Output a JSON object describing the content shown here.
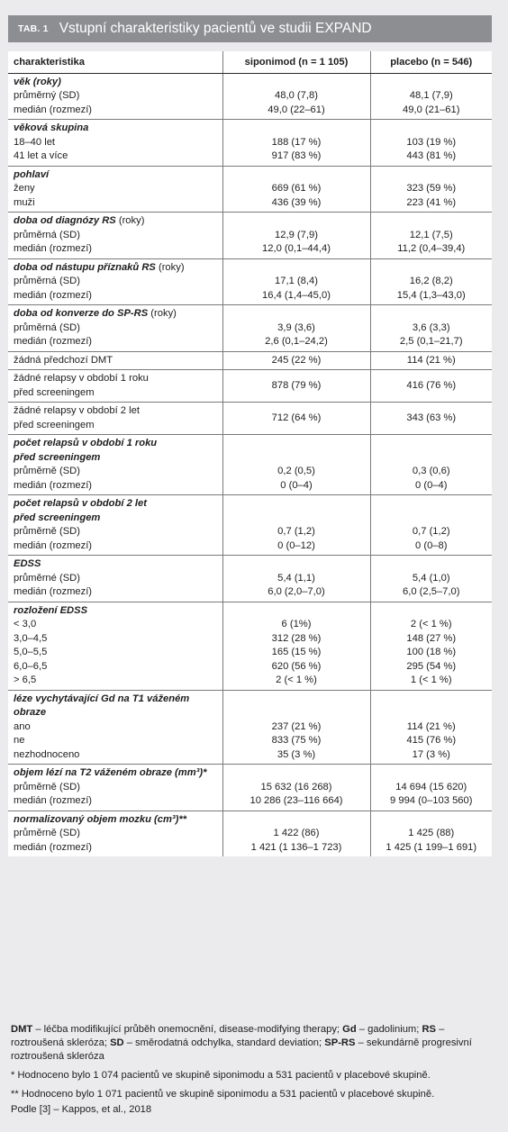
{
  "header": {
    "tab_label": "TAB. 1",
    "title": "Vstupní charakteristiky pacientů ve studii EXPAND"
  },
  "columns": [
    "charakteristika",
    "siponimod (n = 1 105)",
    "placebo (n = 546)"
  ],
  "groups": [
    {
      "title": "věk (roky)",
      "rows": [
        [
          "průměrný (SD)",
          "48,0 (7,8)",
          "48,1 (7,9)"
        ],
        [
          "medián (rozmezí)",
          "49,0 (22–61)",
          "49,0 (21–61)"
        ]
      ]
    },
    {
      "title": "věková skupina",
      "rows": [
        [
          "18–40 let",
          "188 (17 %)",
          "103 (19 %)"
        ],
        [
          "41 let a více",
          "917 (83 %)",
          "443 (81 %)"
        ]
      ]
    },
    {
      "title": "pohlaví",
      "rows": [
        [
          "ženy",
          "669 (61 %)",
          "323 (59 %)"
        ],
        [
          "muži",
          "436 (39 %)",
          "223 (41 %)"
        ]
      ]
    },
    {
      "title": "doba od diagnózy RS",
      "title_suffix": " (roky)",
      "rows": [
        [
          "průměrná (SD)",
          "12,9 (7,9)",
          "12,1 (7,5)"
        ],
        [
          "medián (rozmezí)",
          "12,0 (0,1–44,4)",
          "11,2 (0,4–39,4)"
        ]
      ]
    },
    {
      "title": "doba od nástupu příznaků RS",
      "title_suffix": " (roky)",
      "rows": [
        [
          "průměrná (SD)",
          "17,1 (8,4)",
          "16,2 (8,2)"
        ],
        [
          "medián (rozmezí)",
          "16,4 (1,4–45,0)",
          "15,4 (1,3–43,0)"
        ]
      ]
    },
    {
      "title": "doba od konverze do SP-RS",
      "title_suffix": " (roky)",
      "rows": [
        [
          "průměrná (SD)",
          "3,9 (3,6)",
          "3,6 (3,3)"
        ],
        [
          "medián (rozmezí)",
          "2,6 (0,1–24,2)",
          "2,5 (0,1–21,7)"
        ]
      ]
    },
    {
      "title": "",
      "rows": [
        [
          "žádná předchozí DMT",
          "245 (22 %)",
          "114 (21 %)"
        ]
      ]
    },
    {
      "title": "",
      "rows": [
        [
          "žádné relapsy v období 1 roku\npřed screeningem",
          "878 (79 %)",
          "416 (76 %)"
        ]
      ]
    },
    {
      "title": "",
      "rows": [
        [
          "žádné relapsy v období 2 let\npřed screeningem",
          "712 (64 %)",
          "343 (63 %)"
        ]
      ]
    },
    {
      "title": "počet relapsů v období 1 roku\npřed screeningem",
      "rows": [
        [
          "průměrně (SD)",
          "0,2 (0,5)",
          "0,3 (0,6)"
        ],
        [
          "medián (rozmezí)",
          "0 (0–4)",
          "0 (0–4)"
        ]
      ]
    },
    {
      "title": "počet relapsů v období 2 let\npřed screeningem",
      "rows": [
        [
          "průměrně (SD)",
          "0,7 (1,2)",
          "0,7 (1,2)"
        ],
        [
          "medián (rozmezí)",
          "0 (0–12)",
          "0 (0–8)"
        ]
      ]
    },
    {
      "title": "EDSS",
      "rows": [
        [
          "průměrné (SD)",
          "5,4 (1,1)",
          "5,4 (1,0)"
        ],
        [
          "medián (rozmezí)",
          "6,0 (2,0–7,0)",
          "6,0 (2,5–7,0)"
        ]
      ]
    },
    {
      "title": "rozložení EDSS",
      "rows": [
        [
          "< 3,0",
          "6 (1%)",
          "2 (< 1 %)"
        ],
        [
          "3,0–4,5",
          "312 (28 %)",
          "148 (27 %)"
        ],
        [
          "5,0–5,5",
          "165 (15 %)",
          "100 (18 %)"
        ],
        [
          "6,0–6,5",
          "620 (56 %)",
          "295 (54 %)"
        ],
        [
          "> 6,5",
          "2 (< 1 %)",
          "1 (< 1 %)"
        ]
      ]
    },
    {
      "title": "léze vychytávající Gd na T1 váženém\nobraze",
      "rows": [
        [
          "ano",
          "237 (21 %)",
          "114 (21 %)"
        ],
        [
          "ne",
          "833 (75 %)",
          "415 (76 %)"
        ],
        [
          "nezhodnoceno",
          "35 (3 %)",
          "17 (3 %)"
        ]
      ]
    },
    {
      "title": "objem lézí na T2 váženém obraze (mm³)*",
      "rows": [
        [
          "průměrně (SD)",
          "15 632 (16 268)",
          "14 694 (15 620)"
        ],
        [
          "medián (rozmezí)",
          "10 286 (23–116 664)",
          "9 994 (0–103 560)"
        ]
      ]
    },
    {
      "title": "normalizovaný objem mozku (cm³)**",
      "rows": [
        [
          "průměrně (SD)",
          "1 422 (86)",
          "1 425 (88)"
        ],
        [
          "medián (rozmezí)",
          "1 421 (1 136–1 723)",
          "1 425 (1 199–1 691)"
        ]
      ]
    }
  ],
  "footnotes": {
    "abbrev": [
      {
        "key": "DMT",
        "text": " – léčba modifikující průběh onemocnění, disease-modifying therapy; "
      },
      {
        "key": "Gd",
        "text": " – gadolinium; "
      },
      {
        "key": "RS",
        "text": " – roztroušená skleróza; "
      },
      {
        "key": "SD",
        "text": " – směrodatná odchylka, standard deviation; "
      },
      {
        "key": "SP-RS",
        "text": " – sekundárně progresivní roztroušená skleróza"
      }
    ],
    "note1": "* Hodnoceno bylo 1 074 pacientů ve skupině siponimodu a 531 pacientů v placebové skupině.",
    "note2": "** Hodnoceno bylo 1 071 pacientů ve skupině siponimodu a 531 pacientů v placebové skupině.",
    "source": "Podle [3] – Kappos, et al., 2018"
  }
}
